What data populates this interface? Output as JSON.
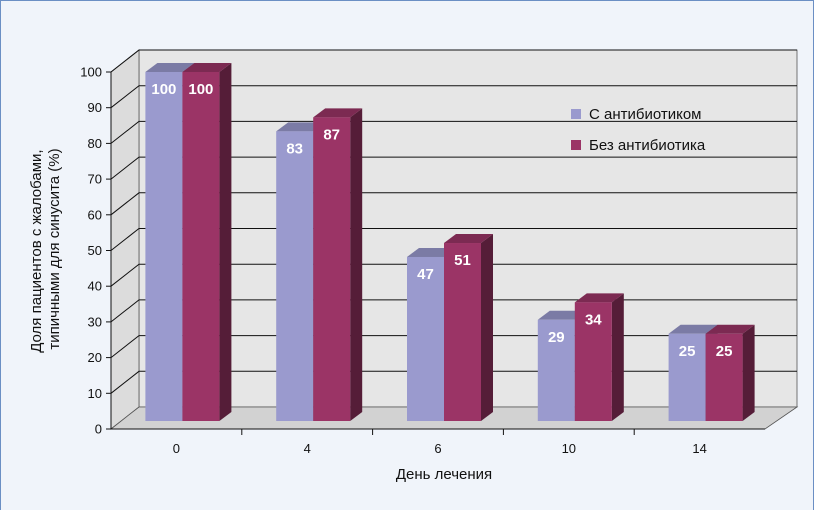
{
  "chart_data": {
    "type": "bar",
    "style": "3d-clustered-column",
    "categories": [
      "0",
      "4",
      "6",
      "10",
      "14"
    ],
    "series": [
      {
        "name": "С антибиотиком",
        "values": [
          100,
          83,
          47,
          29,
          25
        ],
        "color": "#9a9ace"
      },
      {
        "name": "Без антибиотика",
        "values": [
          100,
          87,
          51,
          34,
          25
        ],
        "color": "#9b3466"
      }
    ],
    "title": "",
    "xlabel": "День лечения",
    "ylabel": [
      "Доля пациентов с жалобами,",
      "типичными для синусита (%)"
    ],
    "ylim": [
      0,
      100
    ],
    "yticks": [
      0,
      10,
      20,
      30,
      40,
      50,
      60,
      70,
      80,
      90,
      100
    ],
    "grid": true,
    "legend": "top-right",
    "colors": {
      "wall": "#e6e6e6",
      "floor": "#d2d2d2",
      "grid": "#111111",
      "frame_border": "#6b8fc4",
      "frame_background": "#f0f4fa"
    }
  }
}
